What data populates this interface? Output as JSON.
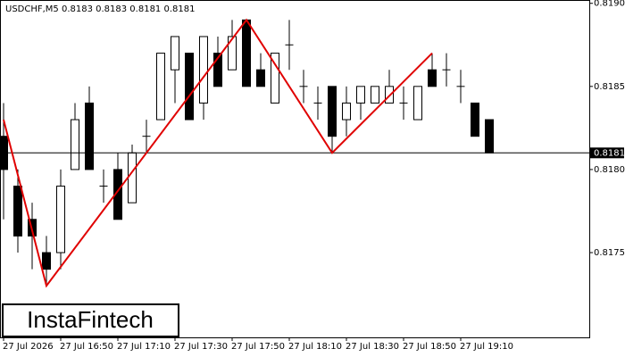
{
  "chart_data": {
    "type": "candlestick",
    "header": "USDCHF,M5  0.8183 0.8183 0.8181 0.8181",
    "logo": "InstaFintech",
    "categories": [
      "27 Jul 2026",
      null,
      null,
      null,
      "27 Jul 16:50",
      null,
      null,
      null,
      "27 Jul 17:10",
      null,
      null,
      null,
      "27 Jul 17:30",
      null,
      null,
      null,
      "27 Jul 17:50",
      null,
      null,
      null,
      "27 Jul 18:10",
      null,
      null,
      null,
      "27 Jul 18:30",
      null,
      null,
      null,
      "27 Jul 18:50",
      null,
      null,
      null,
      "27 Jul 19:10",
      null,
      null
    ],
    "open": [
      0.8182,
      0.8179,
      0.8177,
      0.8175,
      0.8175,
      0.818,
      0.8184,
      0.8179,
      0.818,
      0.8178,
      0.8182,
      0.8183,
      0.8186,
      0.8187,
      0.8184,
      0.8187,
      0.8186,
      0.8189,
      0.8186,
      0.8184,
      0.81875,
      0.8185,
      0.8184,
      0.8185,
      0.8183,
      0.8184,
      0.8184,
      0.8184,
      0.8184,
      0.8183,
      0.8186,
      0.8186,
      0.8185,
      0.8184,
      0.8183
    ],
    "high": [
      0.8184,
      0.818,
      0.8178,
      0.8176,
      0.818,
      0.8184,
      0.8185,
      0.818,
      0.8181,
      0.81815,
      0.8183,
      0.8187,
      0.8188,
      0.8187,
      0.8188,
      0.8188,
      0.8189,
      0.8189,
      0.8187,
      0.8187,
      0.8189,
      0.8186,
      0.8185,
      0.8185,
      0.8185,
      0.8185,
      0.8185,
      0.8186,
      0.8185,
      0.8185,
      0.8187,
      0.8187,
      0.8186,
      0.8184,
      0.8183
    ],
    "low": [
      0.8177,
      0.8175,
      0.8174,
      0.8173,
      0.8174,
      0.818,
      0.818,
      0.8178,
      0.8177,
      0.8178,
      0.8181,
      0.8183,
      0.8184,
      0.8183,
      0.8183,
      0.8185,
      0.8186,
      0.8185,
      0.8185,
      0.8184,
      0.8186,
      0.8184,
      0.8183,
      0.8181,
      0.8182,
      0.8183,
      0.8184,
      0.8184,
      0.8183,
      0.8183,
      0.8185,
      0.8185,
      0.8184,
      0.8182,
      0.8181
    ],
    "close": [
      0.818,
      0.8176,
      0.8176,
      0.8174,
      0.8179,
      0.8183,
      0.818,
      0.8179,
      0.8177,
      0.8181,
      0.8182,
      0.8187,
      0.8188,
      0.8183,
      0.8188,
      0.8185,
      0.8188,
      0.8185,
      0.8185,
      0.8187,
      0.81875,
      0.8185,
      0.8184,
      0.8182,
      0.8184,
      0.8185,
      0.8185,
      0.8185,
      0.8184,
      0.8185,
      0.8185,
      0.8186,
      0.8185,
      0.8182,
      0.8181
    ],
    "pattern": {
      "color": "#e00000",
      "indices": [
        0,
        3,
        17,
        23,
        30
      ],
      "values": [
        0.8183,
        0.8173,
        0.8189,
        0.8181,
        0.8187
      ]
    },
    "current_price": 0.8181,
    "ylim": [
      0.81699,
      0.81902
    ],
    "yticks": [
      0.8175,
      {
        "value": 0.818,
        "label": "0.8180"
      },
      0.8185,
      {
        "value": 0.819,
        "label": "0.8190"
      }
    ]
  }
}
